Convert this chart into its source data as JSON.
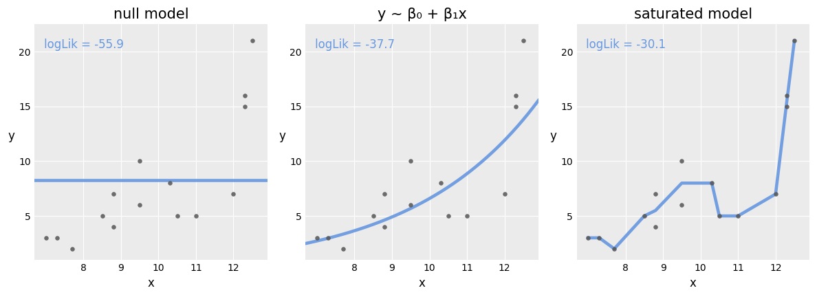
{
  "x": [
    7.0,
    7.3,
    7.7,
    8.5,
    8.8,
    8.8,
    9.5,
    9.5,
    10.3,
    10.5,
    11.0,
    12.0,
    12.3,
    12.3,
    12.5
  ],
  "y": [
    3.0,
    3.0,
    2.0,
    5.0,
    4.0,
    7.0,
    6.0,
    10.0,
    8.0,
    5.0,
    5.0,
    7.0,
    15.0,
    16.0,
    21.0
  ],
  "null_yval": 8.27,
  "loglik_null": "logLik = -55.9",
  "loglik_linear": "logLik = -37.7",
  "loglik_saturated": "logLik = -30.1",
  "title_null": "null model",
  "title_linear": "y ~ β₀ + β₁x",
  "title_saturated": "saturated model",
  "xlabel": "x",
  "ylabel": "y",
  "xlim": [
    6.7,
    12.9
  ],
  "ylim": [
    1.0,
    22.5
  ],
  "yticks": [
    5,
    10,
    15,
    20
  ],
  "xticks": [
    8,
    9,
    10,
    11,
    12
  ],
  "blue_color": "#6697E0",
  "point_color": "#555555",
  "panel_bg": "#EBEBEB",
  "figure_bg": "#FFFFFF",
  "grid_color": "#FFFFFF",
  "exp_b0": -21.5,
  "exp_b1": 2.95,
  "point_size": 22,
  "line_width": 2.8,
  "loglik_fontsize": 12,
  "title_fontsize": 15,
  "axis_fontsize": 12,
  "tick_fontsize": 10
}
